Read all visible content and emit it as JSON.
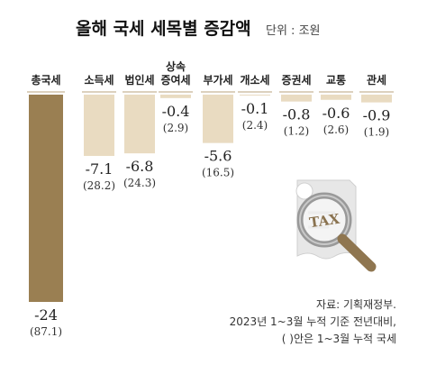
{
  "title": "올해 국세 세목별 증감액",
  "unit_label": "단위 : 조원",
  "notes": [
    "자료: 기획재정부.",
    "2023년 1~3월 누적 기준 전년대비,",
    "( )안은 1~3월 누적 국세"
  ],
  "tax_stamp_text": "TAX",
  "colors": {
    "total_bar": "#9a7f52",
    "total_label": "#9a7f52",
    "other_bar": "#e9dbc1",
    "rule": "#b8a37d"
  },
  "chart_data": {
    "type": "bar",
    "title": "올해 국세 세목별 증감액",
    "ylabel": "단위 : 조원",
    "categories": [
      [
        "총국세"
      ],
      [
        "소득세"
      ],
      [
        "법인세"
      ],
      [
        "상속",
        "증여세"
      ],
      [
        "부가세"
      ],
      [
        "개소세"
      ],
      [
        "증권세"
      ],
      [
        "교통"
      ],
      [
        "관세"
      ]
    ],
    "values": [
      -24,
      -7.1,
      -6.8,
      -0.4,
      -5.6,
      -0.1,
      -0.8,
      -0.6,
      -0.9
    ],
    "value_labels": [
      "-24",
      "-7.1",
      "-6.8",
      "-0.4",
      "-5.6",
      "-0.1",
      "-0.8",
      "-0.6",
      "-0.9"
    ],
    "cumulative_labels": [
      "(87.1)",
      "(28.2)",
      "(24.3)",
      "(2.9)",
      "(16.5)",
      "(2.4)",
      "(1.2)",
      "(2.6)",
      "(1.9)"
    ],
    "cumulative": [
      87.1,
      28.2,
      24.3,
      2.9,
      16.5,
      2.4,
      1.2,
      2.6,
      1.9
    ],
    "ylim": [
      -24,
      0
    ],
    "grid": false,
    "legend": "none"
  }
}
